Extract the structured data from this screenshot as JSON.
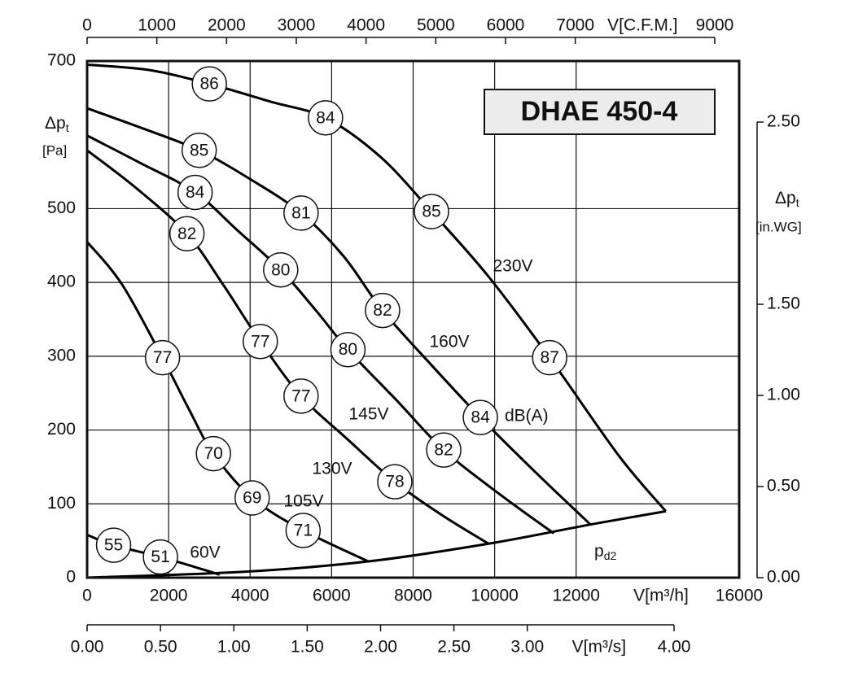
{
  "chart_data": {
    "type": "line",
    "title": "DHAE 450-4",
    "x_axis": {
      "title": "V[m³/h]",
      "xlim": [
        0,
        16000
      ],
      "xticks": [
        0,
        2000,
        4000,
        6000,
        8000,
        10000,
        12000,
        16000
      ]
    },
    "x2_axis": {
      "title": "V[C.F.M.]",
      "xlim": [
        0,
        9000
      ],
      "xticks": [
        0,
        1000,
        2000,
        3000,
        4000,
        5000,
        6000,
        7000,
        9000
      ]
    },
    "x3_axis": {
      "title": "V[m³/s]",
      "xlim": [
        0,
        4
      ],
      "xticks": [
        {
          "value": 0,
          "label": "0.00"
        },
        {
          "value": 0.5,
          "label": "0.50"
        },
        {
          "value": 1,
          "label": "1.00"
        },
        {
          "value": 1.5,
          "label": "1.50"
        },
        {
          "value": 2,
          "label": "2.00"
        },
        {
          "value": 2.5,
          "label": "2.50"
        },
        {
          "value": 3,
          "label": "3.00"
        },
        {
          "value": 4,
          "label": "4.00"
        }
      ]
    },
    "y_axis": {
      "symbol": "Δp",
      "subscript": "t",
      "unit": "[Pa]",
      "ylim": [
        0,
        700
      ],
      "yticks": [
        0,
        100,
        200,
        300,
        400,
        500,
        700
      ]
    },
    "y2_axis": {
      "symbol": "Δp",
      "subscript": "t",
      "unit": "[in.WG]",
      "y2lim": [
        0,
        2.5
      ],
      "y2ticks": [
        {
          "value": 0,
          "label": "0.00"
        },
        {
          "value": 0.5,
          "label": "0.50"
        },
        {
          "value": 1,
          "label": "1.00"
        },
        {
          "value": 1.5,
          "label": "1.50"
        },
        {
          "value": 2.5,
          "label": "2.50"
        }
      ]
    },
    "grid": true,
    "sound_unit": "dB(A)",
    "series": [
      {
        "name": "230V",
        "color": "#000000",
        "x": [
          0,
          1500,
          3000,
          4500,
          5850,
          7200,
          8450,
          9850,
          11350,
          13050,
          14200
        ],
        "values": [
          695,
          688,
          669,
          645,
          623,
          570,
          496,
          408,
          298,
          165,
          90
        ],
        "sound": {
          "x": [
            3000,
            5850,
            8450,
            11350
          ],
          "values": [
            669,
            623,
            496,
            298
          ],
          "labels": [
            86,
            84,
            85,
            87
          ]
        }
      },
      {
        "name": "160V",
        "color": "#000000",
        "x": [
          0,
          1400,
          2750,
          4000,
          5250,
          6300,
          7250,
          8450,
          9650,
          11000,
          12350
        ],
        "values": [
          636,
          608,
          579,
          540,
          494,
          435,
          362,
          288,
          217,
          143,
          72
        ],
        "sound": {
          "x": [
            2750,
            5250,
            7250,
            9650
          ],
          "values": [
            579,
            494,
            362,
            217
          ],
          "labels": [
            85,
            81,
            82,
            84
          ]
        }
      },
      {
        "name": "145V",
        "color": "#000000",
        "x": [
          0,
          1300,
          2650,
          3700,
          4750,
          5600,
          6400,
          7600,
          8750,
          10100,
          11450
        ],
        "values": [
          599,
          562,
          522,
          470,
          417,
          363,
          309,
          240,
          173,
          114,
          60
        ],
        "sound": {
          "x": [
            2650,
            4750,
            6400,
            8750
          ],
          "values": [
            522,
            417,
            309,
            173
          ],
          "labels": [
            84,
            80,
            80,
            82
          ]
        }
      },
      {
        "name": "130V",
        "color": "#000000",
        "x": [
          0,
          1200,
          2450,
          3350,
          4250,
          5250,
          6400,
          7550,
          8700,
          9850
        ],
        "values": [
          579,
          528,
          466,
          396,
          320,
          246,
          187,
          130,
          85,
          46
        ],
        "sound": {
          "x": [
            2450,
            4250,
            5250,
            7550
          ],
          "values": [
            466,
            320,
            246,
            130
          ],
          "labels": [
            82,
            77,
            77,
            78
          ]
        }
      },
      {
        "name": "105V",
        "color": "#000000",
        "x": [
          0,
          860,
          1850,
          2500,
          3100,
          4050,
          5300,
          6900
        ],
        "values": [
          455,
          397,
          298,
          228,
          168,
          108,
          64,
          22
        ],
        "sound": {
          "x": [
            1850,
            3100,
            4050,
            5300
          ],
          "values": [
            298,
            168,
            108,
            64
          ],
          "labels": [
            77,
            70,
            69,
            71
          ]
        }
      },
      {
        "name": "60V",
        "color": "#000000",
        "x": [
          0,
          650,
          1800,
          2850,
          3250
        ],
        "values": [
          58,
          44,
          28,
          11,
          4
        ],
        "sound": {
          "x": [
            650,
            1800
          ],
          "values": [
            44,
            28
          ],
          "labels": [
            55,
            51
          ]
        }
      }
    ],
    "system_curve": {
      "symbol": "p",
      "subscript": "d2",
      "color": "#000000",
      "x": [
        0,
        3850,
        6900,
        9850,
        12350,
        14200
      ],
      "values": [
        0,
        8,
        22,
        46,
        72,
        90
      ]
    }
  }
}
